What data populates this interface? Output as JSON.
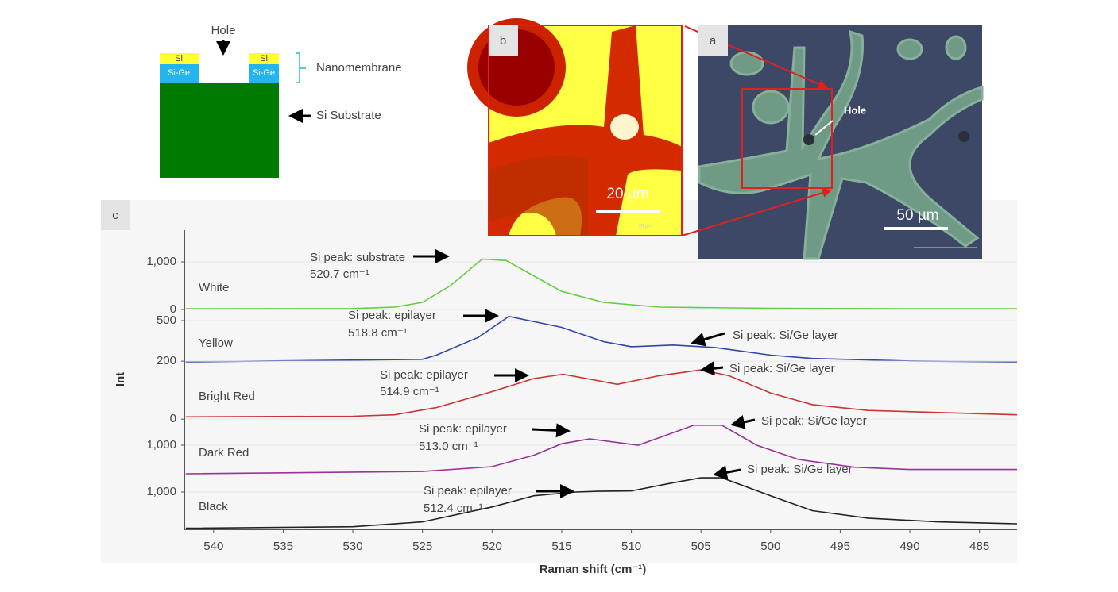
{
  "diagram": {
    "hole": "Hole",
    "si_left": "Si",
    "sige_left": "Si-Ge",
    "si_right": "Si",
    "sige_right": "Si-Ge",
    "nanomembrane": "Nanomembrane",
    "substrate": "Si Substrate"
  },
  "image_b": {
    "label": "b",
    "scale": "20 µm",
    "scale_small": "20 µm"
  },
  "image_a": {
    "label": "a",
    "hole": "Hole",
    "scale": "50 µm"
  },
  "panel_c": {
    "label": "c"
  },
  "chart_data": [
    {
      "type": "line",
      "name": "White",
      "color": "#66cc44",
      "xlim": [
        542.1,
        482.3
      ],
      "ylim": [
        -83,
        1667
      ],
      "yticks": [
        0,
        {
          "value": 1000,
          "label": "1,000"
        }
      ],
      "x": [
        542,
        530,
        527,
        525,
        523,
        520.7,
        519,
        515,
        512,
        508,
        500,
        490,
        482.3
      ],
      "values": [
        15,
        20,
        50,
        150,
        500,
        1060,
        1030,
        380,
        150,
        50,
        25,
        15,
        15
      ],
      "annotations": [
        {
          "label": "Si peak: substrate",
          "sublabel": "520.7 cm⁻¹"
        }
      ]
    },
    {
      "type": "line",
      "name": "Yellow",
      "color": "#3344aa",
      "xlim": [
        542.1,
        482.3
      ],
      "ylim": [
        -28,
        585
      ],
      "yticks": [
        500
      ],
      "x": [
        542,
        525,
        524,
        521,
        518.8,
        515,
        512,
        510,
        507,
        504,
        500,
        497,
        490,
        482.3
      ],
      "values": [
        10,
        40,
        90,
        300,
        550,
        420,
        250,
        190,
        210,
        180,
        90,
        50,
        20,
        10
      ],
      "annotations": [
        {
          "label": "Si peak: epilayer",
          "sublabel": "518.8 cm⁻¹"
        },
        {
          "label": "Si peak: Si/Ge layer"
        }
      ]
    },
    {
      "type": "line",
      "name": "Bright Red",
      "color": "#cc3333",
      "xlim": [
        542.1,
        482.3
      ],
      "ylim": [
        -5,
        214
      ],
      "yticks": [
        0,
        200
      ],
      "ylabel": "Int",
      "x": [
        542,
        530,
        527,
        524,
        520,
        517,
        514.9,
        511,
        508,
        505,
        503,
        500,
        497,
        493,
        482.3
      ],
      "values": [
        8,
        10,
        15,
        40,
        95,
        140,
        155,
        120,
        150,
        170,
        150,
        90,
        50,
        30,
        15
      ],
      "annotations": [
        {
          "label": "Si peak: epilayer",
          "sublabel": "514.9 cm⁻¹"
        },
        {
          "label": "Si peak: Si/Ge layer"
        }
      ]
    },
    {
      "type": "line",
      "name": "Dark Red",
      "color": "#993399",
      "xlim": [
        542.1,
        482.3
      ],
      "ylim": [
        -83,
        1861
      ],
      "yticks": [
        {
          "value": 1000,
          "label": "1,000"
        }
      ],
      "x": [
        542,
        525,
        520,
        517,
        515,
        513,
        509.5,
        505.5,
        503.5,
        501,
        498,
        494,
        490,
        482.3
      ],
      "values": [
        0,
        80,
        250,
        650,
        1050,
        1220,
        1000,
        1700,
        1700,
        1000,
        500,
        230,
        150,
        150
      ],
      "annotations": [
        {
          "label": "Si peak: epilayer",
          "sublabel": "513.0 cm⁻¹"
        },
        {
          "label": "Si peak: Si/Ge layer"
        }
      ]
    },
    {
      "type": "line",
      "name": "Black",
      "color": "#222222",
      "xlim": [
        542.1,
        482.3
      ],
      "ylim": [
        0,
        1532
      ],
      "yticks": [
        {
          "value": 1000,
          "label": "1,000"
        }
      ],
      "xticks": [
        540,
        535,
        530,
        525,
        520,
        515,
        510,
        505,
        500,
        495,
        490,
        485
      ],
      "xlabel": "Raman shift (cm⁻¹)",
      "x": [
        542,
        530,
        525,
        520,
        517,
        514,
        512.4,
        510,
        507,
        505,
        503.5,
        500,
        497,
        493,
        488,
        482.3
      ],
      "values": [
        30,
        70,
        200,
        600,
        900,
        1000,
        1020,
        1030,
        1250,
        1380,
        1380,
        900,
        500,
        300,
        200,
        150
      ],
      "annotations": [
        {
          "label": "Si peak: epilayer",
          "sublabel": "512.4 cm⁻¹"
        },
        {
          "label": "Si peak: Si/Ge layer"
        }
      ]
    }
  ]
}
